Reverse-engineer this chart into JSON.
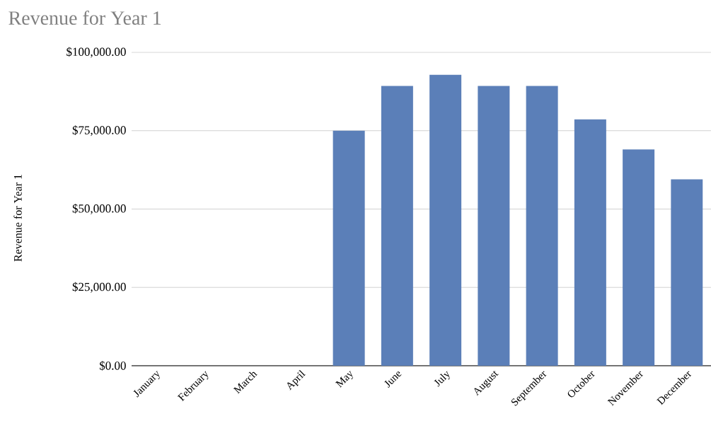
{
  "chart_data": {
    "type": "bar",
    "title": "Revenue for Year 1",
    "ylabel": "Revenue for Year 1",
    "categories": [
      "January",
      "February",
      "March",
      "April",
      "May",
      "June",
      "July",
      "August",
      "September",
      "October",
      "November",
      "December"
    ],
    "values": [
      0,
      0,
      0,
      0,
      75000,
      89300,
      92900,
      89300,
      89300,
      78600,
      69000,
      59500
    ],
    "color": "#5b7fb8",
    "ylim": [
      0,
      100000
    ],
    "yticks": [
      {
        "value": 0,
        "label": "$0.00"
      },
      {
        "value": 25000,
        "label": "$25,000.00"
      },
      {
        "value": 50000,
        "label": "$50,000.00"
      },
      {
        "value": 75000,
        "label": "$75,000.00"
      },
      {
        "value": 100000,
        "label": "$100,000.00"
      }
    ],
    "grid": "y"
  }
}
